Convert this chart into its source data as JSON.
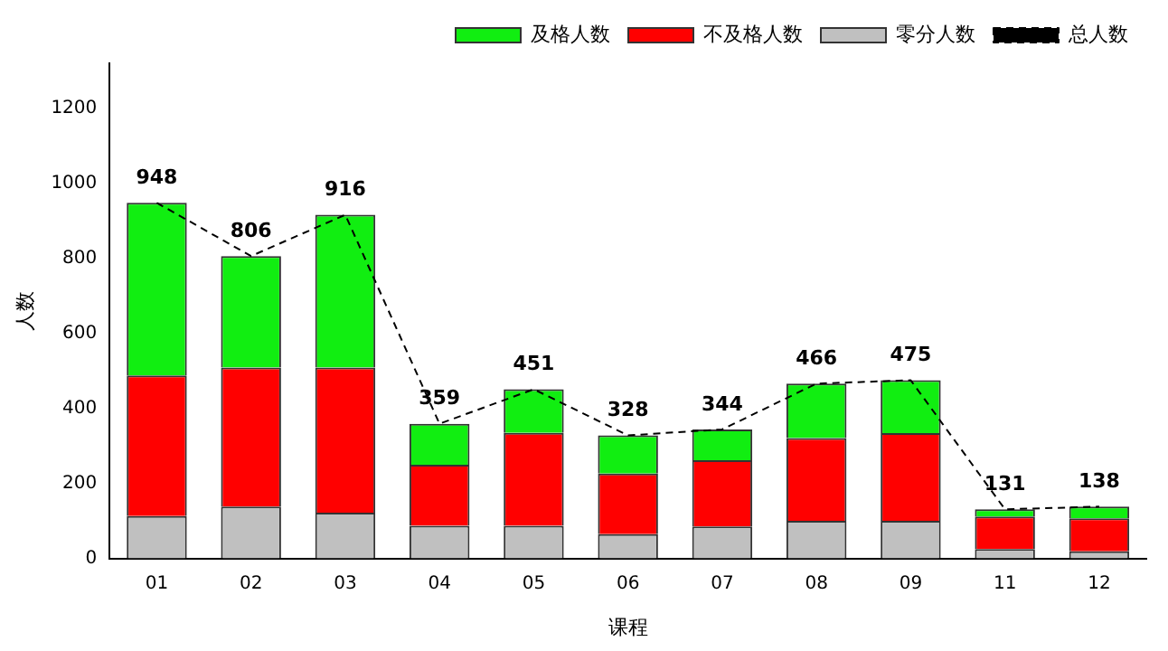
{
  "chart_data": {
    "type": "bar",
    "stacked": true,
    "xlabel": "课程",
    "ylabel": "人数",
    "categories": [
      "01",
      "02",
      "03",
      "04",
      "05",
      "06",
      "07",
      "08",
      "09",
      "11",
      "12"
    ],
    "series": [
      {
        "name": "零分人数",
        "color": "#c0c0c0",
        "values": [
          113,
          138,
          122,
          87,
          87,
          65,
          85,
          100,
          100,
          25,
          19
        ]
      },
      {
        "name": "不及格人数",
        "color": "#ff0000",
        "values": [
          375,
          371,
          387,
          163,
          248,
          161,
          177,
          221,
          234,
          87,
          88
        ]
      },
      {
        "name": "及格人数",
        "color": "#11ee11",
        "values": [
          460,
          297,
          407,
          109,
          116,
          102,
          82,
          145,
          141,
          19,
          31
        ]
      },
      {
        "name": "总人数",
        "type": "line",
        "color": "#000000",
        "line_style": "dashed",
        "marker": "none",
        "values": [
          948,
          806,
          916,
          359,
          451,
          328,
          344,
          466,
          475,
          131,
          138
        ]
      }
    ],
    "totals": [
      "948",
      "806",
      "916",
      "359",
      "451",
      "328",
      "344",
      "466",
      "475",
      "131",
      "138"
    ],
    "ylim": [
      0,
      1320
    ],
    "yticks": [
      0,
      200,
      400,
      600,
      800,
      1000,
      1200
    ],
    "grid": false,
    "legend": "top right"
  }
}
